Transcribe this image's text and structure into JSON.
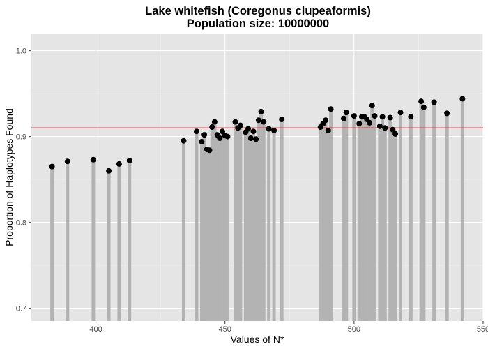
{
  "chart_data": {
    "type": "scatter",
    "title": "Lake whitefish (Coregonus clupeaformis)",
    "subtitle": "Population size: 10000000",
    "xlabel": "Values of N*",
    "ylabel": "Proportion of Haplotypes Found",
    "xlim": [
      375,
      550
    ],
    "ylim": [
      0.685,
      1.02
    ],
    "x_ticks": [
      400,
      450,
      500,
      550
    ],
    "y_ticks": [
      0.7,
      0.8,
      0.9,
      1.0
    ],
    "x_tick_labels": [
      "400",
      "450",
      "500",
      "550"
    ],
    "y_tick_labels": [
      "0.7",
      "0.8",
      "0.9",
      "1.0"
    ],
    "grid": true,
    "reference_line": {
      "y": 0.91,
      "color": "#e41a1c"
    },
    "colors": {
      "panel": "#e5e5e5",
      "grid_major": "#ffffff",
      "grid_minor": "#f2f2f2",
      "stem": "#b3b3b3",
      "point": "#000000"
    },
    "points": [
      {
        "x": 383,
        "y": 0.865
      },
      {
        "x": 389,
        "y": 0.871
      },
      {
        "x": 399,
        "y": 0.873
      },
      {
        "x": 405,
        "y": 0.86
      },
      {
        "x": 409,
        "y": 0.868
      },
      {
        "x": 413,
        "y": 0.872
      },
      {
        "x": 434,
        "y": 0.895
      },
      {
        "x": 439,
        "y": 0.906
      },
      {
        "x": 441,
        "y": 0.894
      },
      {
        "x": 442,
        "y": 0.902
      },
      {
        "x": 443,
        "y": 0.885
      },
      {
        "x": 444,
        "y": 0.884
      },
      {
        "x": 445,
        "y": 0.911
      },
      {
        "x": 446,
        "y": 0.917
      },
      {
        "x": 447,
        "y": 0.902
      },
      {
        "x": 448,
        "y": 0.898
      },
      {
        "x": 449,
        "y": 0.906
      },
      {
        "x": 450,
        "y": 0.901
      },
      {
        "x": 451,
        "y": 0.9
      },
      {
        "x": 454,
        "y": 0.917
      },
      {
        "x": 455,
        "y": 0.91
      },
      {
        "x": 456,
        "y": 0.913
      },
      {
        "x": 458,
        "y": 0.905
      },
      {
        "x": 459,
        "y": 0.909
      },
      {
        "x": 460,
        "y": 0.898
      },
      {
        "x": 461,
        "y": 0.906
      },
      {
        "x": 462,
        "y": 0.897
      },
      {
        "x": 463,
        "y": 0.919
      },
      {
        "x": 464,
        "y": 0.929
      },
      {
        "x": 465,
        "y": 0.917
      },
      {
        "x": 467,
        "y": 0.909
      },
      {
        "x": 469,
        "y": 0.907
      },
      {
        "x": 472,
        "y": 0.92
      },
      {
        "x": 487,
        "y": 0.911
      },
      {
        "x": 488,
        "y": 0.915
      },
      {
        "x": 489,
        "y": 0.919
      },
      {
        "x": 490,
        "y": 0.907
      },
      {
        "x": 491,
        "y": 0.932
      },
      {
        "x": 496,
        "y": 0.921
      },
      {
        "x": 497,
        "y": 0.928
      },
      {
        "x": 500,
        "y": 0.924
      },
      {
        "x": 502,
        "y": 0.915
      },
      {
        "x": 503,
        "y": 0.923
      },
      {
        "x": 504,
        "y": 0.923
      },
      {
        "x": 505,
        "y": 0.92
      },
      {
        "x": 506,
        "y": 0.916
      },
      {
        "x": 507,
        "y": 0.936
      },
      {
        "x": 508,
        "y": 0.924
      },
      {
        "x": 510,
        "y": 0.912
      },
      {
        "x": 511,
        "y": 0.923
      },
      {
        "x": 512,
        "y": 0.91
      },
      {
        "x": 514,
        "y": 0.922
      },
      {
        "x": 515,
        "y": 0.908
      },
      {
        "x": 516,
        "y": 0.903
      },
      {
        "x": 518,
        "y": 0.928
      },
      {
        "x": 522,
        "y": 0.923
      },
      {
        "x": 526,
        "y": 0.941
      },
      {
        "x": 527,
        "y": 0.934
      },
      {
        "x": 531,
        "y": 0.94
      },
      {
        "x": 536,
        "y": 0.927
      },
      {
        "x": 542,
        "y": 0.944
      }
    ]
  }
}
